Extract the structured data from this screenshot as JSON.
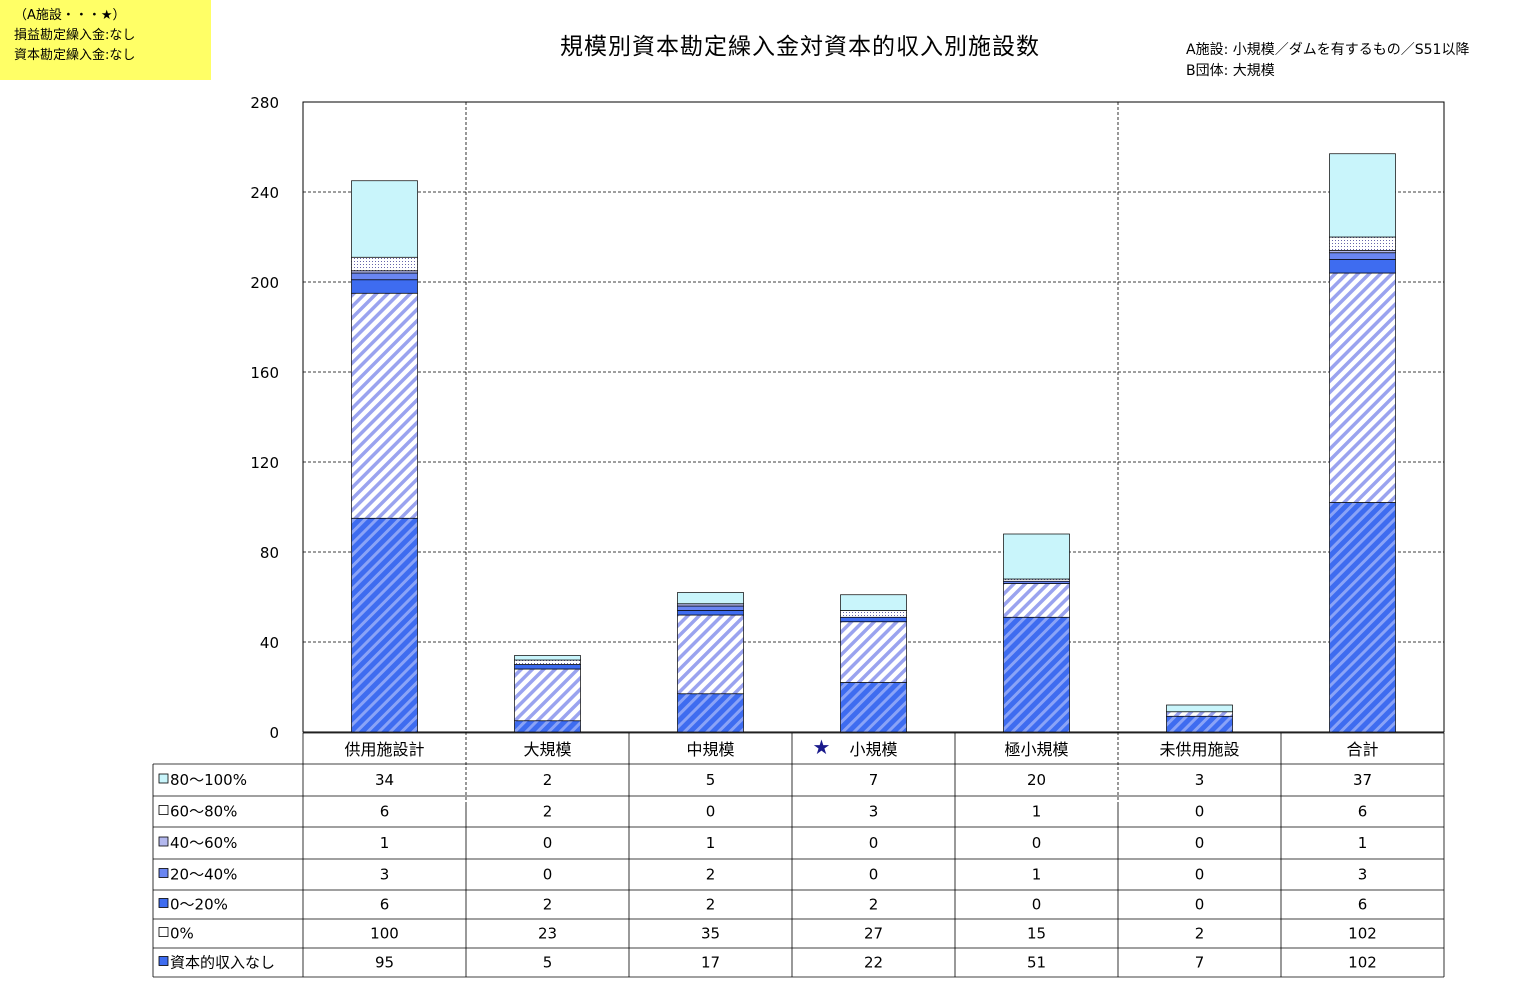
{
  "note": {
    "line1": "（A施設・・・★）",
    "line2": "損益勘定繰入金:なし",
    "line3": "資本勘定繰入金:なし"
  },
  "subnote": {
    "line1": "A施設: 小規模／ダムを有するもの／S51以降",
    "line2": "B団体: 大規模"
  },
  "star_symbol": "★",
  "star_category": "小規模",
  "colors": {
    "dark_blue": "#3e6cf0",
    "light_blue": "#c9f5fb",
    "hatch_blue": "#8e99f0",
    "grid": "#000000"
  },
  "chart_data": {
    "type": "bar",
    "stacked": true,
    "title": "規模別資本勘定繰入金対資本的収入別施設数",
    "categories": [
      "供用施設計",
      "大規模",
      "中規模",
      "小規模",
      "極小規模",
      "未供用施設",
      "合計"
    ],
    "ylim": [
      0,
      280
    ],
    "yticks": [
      0,
      40,
      80,
      120,
      160,
      200,
      240,
      280
    ],
    "grid": true,
    "series": [
      {
        "name": "資本的収入なし",
        "pattern": "dark-hatch",
        "values": [
          95,
          5,
          17,
          22,
          51,
          7,
          102
        ]
      },
      {
        "name": "0%",
        "pattern": "light-hatch",
        "values": [
          100,
          23,
          35,
          27,
          15,
          2,
          102
        ]
      },
      {
        "name": "0～20%",
        "pattern": "solid-blue",
        "values": [
          6,
          2,
          2,
          2,
          0,
          0,
          6
        ]
      },
      {
        "name": "20～40%",
        "pattern": "solid-blue-light",
        "values": [
          3,
          0,
          2,
          0,
          1,
          0,
          3
        ]
      },
      {
        "name": "40～60%",
        "pattern": "lavender",
        "values": [
          1,
          0,
          1,
          0,
          0,
          0,
          1
        ]
      },
      {
        "name": "60～80%",
        "pattern": "dotted",
        "values": [
          6,
          2,
          0,
          3,
          1,
          0,
          6
        ]
      },
      {
        "name": "80～100%",
        "pattern": "light-cyan",
        "values": [
          34,
          2,
          5,
          7,
          20,
          3,
          37
        ]
      }
    ]
  }
}
